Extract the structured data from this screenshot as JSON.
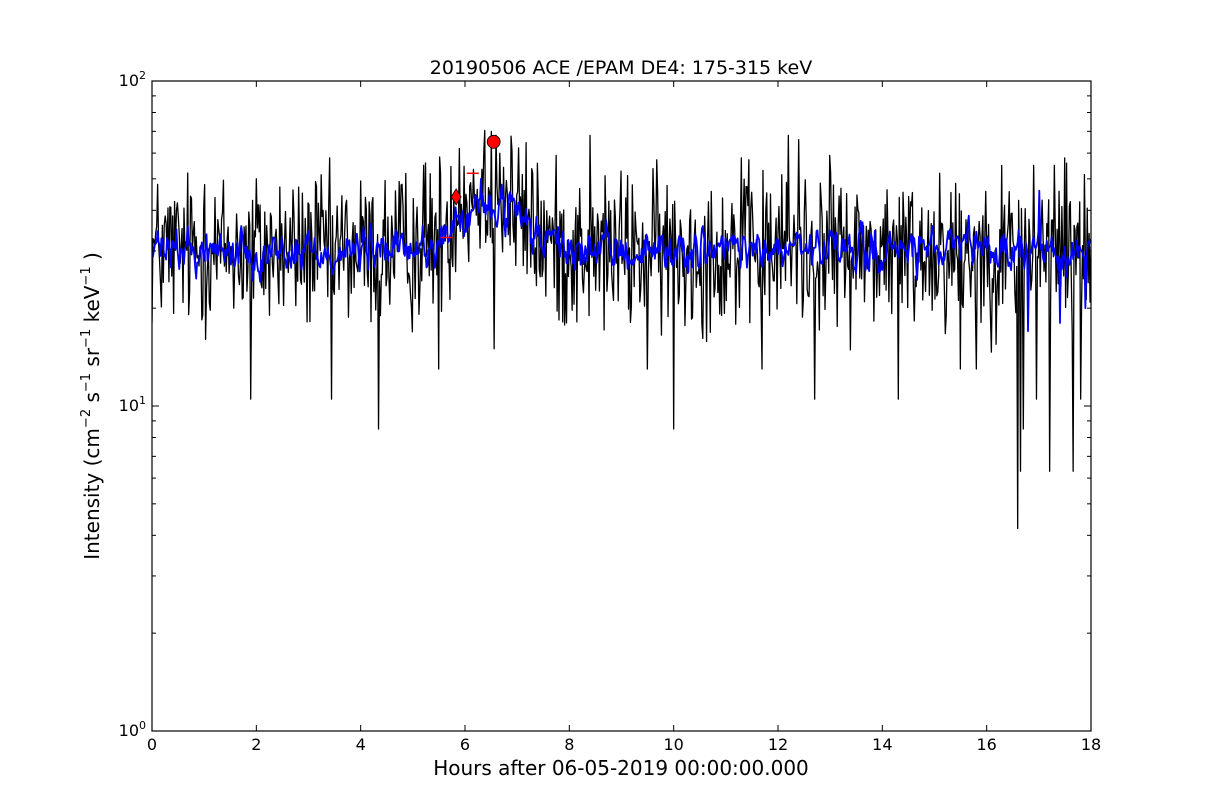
{
  "chart_data": {
    "type": "line",
    "title": "20190506 ACE /EPAM DE4: 175-315 keV",
    "xlabel": "Hours after 06-05-2019 00:00:00.000",
    "ylabel_parts": {
      "prefix": "Intensity (cm",
      "exp1": "−2",
      "s": " s",
      "exp2": "−1",
      "sr": " sr",
      "exp3": "−1",
      "kev": " keV",
      "exp4": "−1",
      "suffix": " )"
    },
    "xlim": [
      0,
      18
    ],
    "ylim": [
      1,
      100
    ],
    "yscale": "log",
    "grid": false,
    "x_ticks": [
      0,
      2,
      4,
      6,
      8,
      10,
      12,
      14,
      16,
      18
    ],
    "x_tick_labels": [
      "0",
      "2",
      "4",
      "6",
      "8",
      "10",
      "12",
      "14",
      "16",
      "18"
    ],
    "y_ticks": [
      1,
      10,
      100
    ],
    "y_tick_labels": [
      {
        "base": "10",
        "exp": "0"
      },
      {
        "base": "10",
        "exp": "1"
      },
      {
        "base": "10",
        "exp": "2"
      }
    ],
    "series": [
      {
        "color": "#000000",
        "style": "raw",
        "baseline": 30,
        "spread_log": 0.12,
        "points": 1000,
        "bump": {
          "center": 6.4,
          "width": 0.8,
          "factor": 1.55
        },
        "spikes_up": [
          [
            1.0,
            48
          ],
          [
            2.0,
            50
          ],
          [
            3.4,
            58
          ],
          [
            5.2,
            55
          ],
          [
            5.9,
            62
          ],
          [
            6.5,
            70
          ],
          [
            6.6,
            68
          ],
          [
            7.3,
            52
          ],
          [
            8.4,
            68
          ],
          [
            10.0,
            58
          ],
          [
            11.3,
            58
          ],
          [
            12.2,
            68
          ],
          [
            12.4,
            66
          ],
          [
            13.0,
            52
          ],
          [
            15.1,
            52
          ],
          [
            16.9,
            55
          ],
          [
            17.3,
            55
          ],
          [
            17.5,
            58
          ]
        ],
        "spikes_down": [
          [
            1.9,
            10.5
          ],
          [
            3.45,
            10.5
          ],
          [
            4.35,
            8.5
          ],
          [
            5.5,
            13
          ],
          [
            6.55,
            15
          ],
          [
            9.5,
            13
          ],
          [
            10.0,
            8.5
          ],
          [
            11.7,
            13
          ],
          [
            12.7,
            10.5
          ],
          [
            14.3,
            10.5
          ],
          [
            15.5,
            13
          ],
          [
            15.8,
            13
          ],
          [
            16.65,
            6.3
          ],
          [
            16.6,
            4.2
          ],
          [
            16.7,
            8.5
          ],
          [
            16.95,
            10.5
          ],
          [
            17.2,
            6.3
          ],
          [
            17.65,
            6.3
          ],
          [
            17.8,
            10.5
          ]
        ]
      },
      {
        "color": "#0000ff",
        "style": "smoothed",
        "baseline": 30,
        "spread_log": 0.06,
        "points": 1000,
        "bump": {
          "center": 6.5,
          "width": 0.8,
          "factor": 1.35
        },
        "spikes_up": [
          [
            6.3,
            50
          ],
          [
            6.7,
            48
          ],
          [
            17.0,
            46
          ]
        ],
        "spikes_down": [
          [
            16.8,
            17
          ],
          [
            17.4,
            18
          ],
          [
            17.9,
            20
          ]
        ]
      }
    ],
    "markers": [
      {
        "shape": "diamond",
        "x": 5.83,
        "y": 44,
        "color": "#ff0000"
      },
      {
        "shape": "circle",
        "x": 6.55,
        "y": 65,
        "color": "#ff0000"
      }
    ],
    "red_ticks": [
      {
        "x": 5.65,
        "y": 33
      },
      {
        "x": 6.15,
        "y": 52
      }
    ]
  }
}
